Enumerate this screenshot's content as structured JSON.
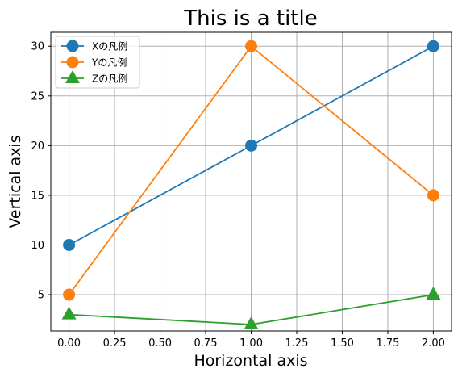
{
  "chart_data": {
    "type": "line",
    "title": "This is a title",
    "xlabel": "Horizontal axis",
    "ylabel": "Vertical axis",
    "x": [
      0,
      1,
      2
    ],
    "xlim": [
      -0.1,
      2.1
    ],
    "ylim": [
      1.35,
      31.4
    ],
    "xticks": [
      0,
      0.25,
      0.5,
      0.75,
      1,
      1.25,
      1.5,
      1.75,
      2
    ],
    "xtick_labels": [
      "0.00",
      "0.25",
      "0.50",
      "0.75",
      "1.00",
      "1.25",
      "1.50",
      "1.75",
      "2.00"
    ],
    "yticks": [
      5,
      10,
      15,
      20,
      25,
      30
    ],
    "ytick_labels": [
      "5",
      "10",
      "15",
      "20",
      "25",
      "30"
    ],
    "grid": true,
    "legend_position": "top-left",
    "series": [
      {
        "name": "Xの凡例",
        "values": [
          10,
          20,
          30
        ],
        "color": "#1f77b4",
        "marker": "circle"
      },
      {
        "name": "Yの凡例",
        "values": [
          5,
          30,
          15
        ],
        "color": "#ff7f0e",
        "marker": "circle"
      },
      {
        "name": "Zの凡例",
        "values": [
          3,
          2,
          5
        ],
        "color": "#2ca02c",
        "marker": "triangle"
      }
    ]
  }
}
